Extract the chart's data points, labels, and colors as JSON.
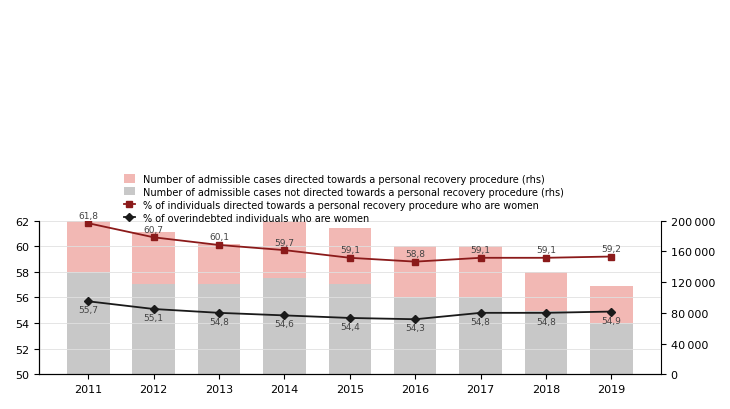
{
  "years": [
    2011,
    2012,
    2013,
    2014,
    2015,
    2016,
    2017,
    2018,
    2019
  ],
  "bars_not_directed": [
    133000,
    117000,
    117000,
    125000,
    117000,
    100000,
    100000,
    83000,
    67000
  ],
  "bars_directed": [
    68000,
    68000,
    52000,
    78000,
    73000,
    67000,
    67000,
    50000,
    48000
  ],
  "pct_directed_women": [
    61.8,
    60.7,
    60.1,
    59.7,
    59.1,
    58.8,
    59.1,
    59.1,
    59.2
  ],
  "pct_overindebted_women": [
    55.7,
    55.1,
    54.8,
    54.6,
    54.4,
    54.3,
    54.8,
    54.8,
    54.9
  ],
  "pct_directed_labels": [
    "61,8",
    "60,7",
    "60,1",
    "59,7",
    "59,1",
    "58,8",
    "59,1",
    "59,1",
    "59,2"
  ],
  "pct_overindebted_labels": [
    "55,7",
    "55,1",
    "54,8",
    "54,6",
    "54,4",
    "54,3",
    "54,8",
    "54,8",
    "54,9"
  ],
  "bar_color_directed": "#f2b8b4",
  "bar_color_not_directed": "#c8c8c8",
  "line_color_directed": "#8b1a1a",
  "line_color_overindebted": "#1a1a1a",
  "left_ylim": [
    50,
    62
  ],
  "left_yticks": [
    50,
    52,
    54,
    56,
    58,
    60,
    62
  ],
  "right_ylim": [
    0,
    200000
  ],
  "right_yticks": [
    0,
    40000,
    80000,
    120000,
    160000,
    200000
  ],
  "legend_labels": [
    "Number of admissible cases directed towards a personal recovery procedure (rhs)",
    "Number of admissible cases not directed towards a personal recovery procedure (rhs)",
    "% of individuals directed towards a personal recovery procedure who are women",
    "% of overindebted individuals who are women"
  ],
  "bar_width": 0.65,
  "figsize": [
    7.3,
    4.1
  ],
  "dpi": 100
}
